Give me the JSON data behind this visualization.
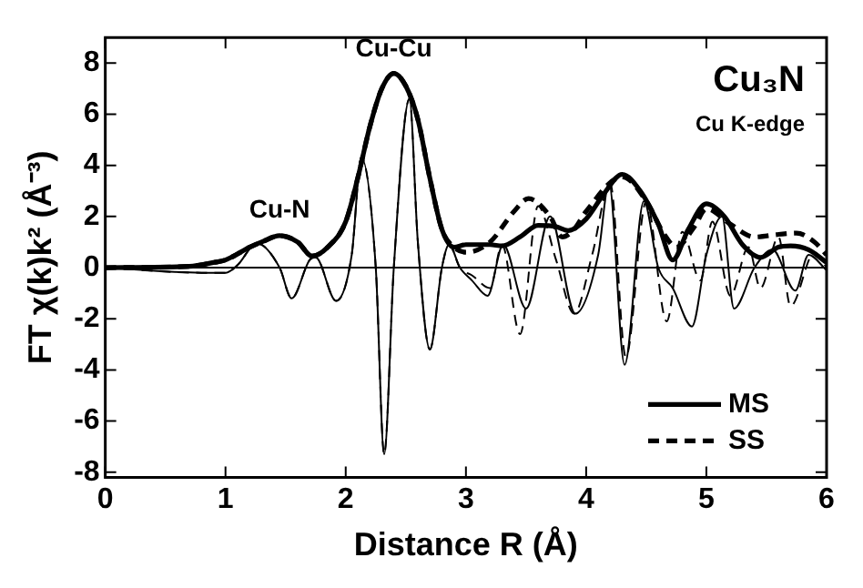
{
  "chart_data": {
    "type": "line",
    "title": "Cu₃N",
    "subtitle": "Cu K-edge",
    "xlabel": "Distance R (Å)",
    "ylabel": "FT χ(k)k² (Å⁻³)",
    "xlim": [
      0,
      6
    ],
    "xticks": [
      0,
      1,
      2,
      3,
      4,
      5,
      6
    ],
    "ylim": [
      -8.2,
      9
    ],
    "yticks": [
      -8,
      -6,
      -4,
      -2,
      0,
      2,
      4,
      6,
      8
    ],
    "grid": false,
    "legend": "bottom right",
    "marker": "none",
    "ref_lines": [
      {
        "axis": "y",
        "value": 0
      }
    ],
    "annotations": [
      {
        "text": "Cu-N",
        "x": 1.45,
        "y": 1.3
      },
      {
        "text": "Cu-Cu",
        "x": 2.4,
        "y": 7.6
      }
    ],
    "series": [
      {
        "name": "MS",
        "color": "#000000",
        "line_style": "solid",
        "x": [
          0,
          0.7,
          0.9,
          1.0,
          1.2,
          1.3,
          1.45,
          1.6,
          1.72,
          1.85,
          2.0,
          2.1,
          2.2,
          2.3,
          2.4,
          2.5,
          2.6,
          2.7,
          2.8,
          2.9,
          3.0,
          3.2,
          3.3,
          3.45,
          3.6,
          3.75,
          3.85,
          4.0,
          4.15,
          4.3,
          4.45,
          4.6,
          4.72,
          4.85,
          5.0,
          5.15,
          5.3,
          5.45,
          5.6,
          5.7,
          5.85,
          6.0
        ],
        "values": [
          0,
          0.05,
          0.2,
          0.3,
          0.8,
          1.0,
          1.25,
          1.0,
          0.45,
          0.8,
          1.8,
          3.5,
          5.5,
          7.0,
          7.6,
          7.1,
          5.8,
          3.5,
          1.5,
          0.8,
          0.9,
          0.9,
          0.85,
          1.2,
          1.65,
          1.6,
          1.45,
          1.9,
          2.9,
          3.65,
          3.0,
          1.7,
          0.3,
          1.5,
          2.5,
          2.0,
          0.9,
          0.4,
          0.8,
          0.85,
          0.7,
          0.2
        ]
      },
      {
        "color": "#000000",
        "line_style": "solid",
        "x": [
          0,
          0.8,
          1.0,
          1.1,
          1.26,
          1.45,
          1.55,
          1.7,
          1.75,
          1.92,
          2.05,
          2.13,
          2.25,
          2.32,
          2.4,
          2.53,
          2.6,
          2.7,
          2.8,
          2.86,
          2.95,
          3.05,
          3.18,
          3.31,
          3.5,
          3.7,
          3.91,
          4.1,
          4.19,
          4.32,
          4.48,
          4.6,
          4.72,
          4.88,
          5.0,
          5.13,
          5.23,
          5.4,
          5.55,
          5.74,
          5.85,
          6.0
        ],
        "values": [
          0,
          -0.2,
          -0.2,
          0.1,
          0.95,
          0,
          -1.2,
          0.3,
          0.4,
          -1.3,
          0.5,
          4.3,
          0,
          -7.3,
          0,
          6.6,
          1,
          -3.2,
          0,
          0.9,
          0,
          -0.5,
          -1.1,
          0.9,
          -1.6,
          2.0,
          -1.8,
          0.5,
          3.3,
          -3.8,
          2.6,
          0,
          -0.8,
          -2.3,
          0.5,
          2.0,
          -1.6,
          0,
          0.7,
          -0.9,
          0.5,
          -0.1
        ]
      },
      {
        "name": "SS",
        "color": "#000000",
        "line_style": "dashed",
        "x": [
          0,
          0.7,
          0.9,
          1.0,
          1.2,
          1.3,
          1.45,
          1.6,
          1.72,
          1.85,
          2.0,
          2.1,
          2.2,
          2.3,
          2.4,
          2.5,
          2.6,
          2.7,
          2.8,
          2.9,
          3.0,
          3.2,
          3.4,
          3.52,
          3.7,
          3.8,
          3.9,
          4.0,
          4.3,
          4.5,
          4.65,
          4.75,
          4.9,
          5.0,
          5.2,
          5.4,
          5.6,
          5.75,
          5.9,
          6.0
        ],
        "values": [
          0,
          0.05,
          0.2,
          0.3,
          0.8,
          1.0,
          1.25,
          1.0,
          0.45,
          0.8,
          1.8,
          3.5,
          5.5,
          7.0,
          7.6,
          7.1,
          5.8,
          3.5,
          1.5,
          0.8,
          0.6,
          1.0,
          2.2,
          2.7,
          2.0,
          1.2,
          1.5,
          2.2,
          3.55,
          2.6,
          1.3,
          0.8,
          1.6,
          2.3,
          1.7,
          1.2,
          1.3,
          1.35,
          1.0,
          0.5
        ]
      },
      {
        "color": "#000000",
        "line_style": "dashed",
        "x": [
          0,
          0.8,
          1.0,
          1.1,
          1.26,
          1.45,
          1.55,
          1.7,
          1.75,
          1.92,
          2.05,
          2.13,
          2.25,
          2.32,
          2.4,
          2.53,
          2.6,
          2.7,
          2.8,
          2.86,
          2.95,
          3.05,
          3.2,
          3.3,
          3.45,
          3.6,
          3.75,
          3.9,
          4.05,
          4.2,
          4.33,
          4.5,
          4.67,
          4.8,
          4.95,
          5.05,
          5.2,
          5.35,
          5.45,
          5.6,
          5.7,
          5.9,
          6.0
        ],
        "values": [
          0,
          -0.2,
          -0.2,
          0.1,
          0.95,
          0,
          -1.2,
          0.3,
          0.4,
          -1.3,
          0.5,
          4.3,
          0,
          -7.3,
          0,
          6.6,
          1,
          -3.2,
          0,
          0.9,
          0,
          -0.3,
          -0.8,
          0.9,
          -2.6,
          2.4,
          0.3,
          -1.8,
          0.5,
          3.3,
          -3.5,
          2.6,
          -2.1,
          1.4,
          -0.5,
          1.8,
          -1.1,
          0.8,
          -0.8,
          1.2,
          -1.5,
          0.6,
          0
        ]
      }
    ]
  }
}
